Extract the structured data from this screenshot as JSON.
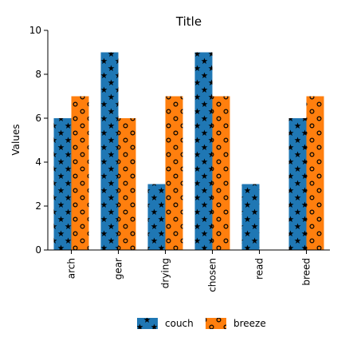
{
  "chart_data": {
    "type": "bar",
    "title": "Title",
    "xlabel": "",
    "ylabel": "Values",
    "ylim": [
      0,
      10
    ],
    "yticks": [
      0,
      2,
      4,
      6,
      8,
      10
    ],
    "grid": false,
    "legend_position": "bottom",
    "categories": [
      "arch",
      "gear",
      "drying",
      "chosen",
      "read",
      "breed"
    ],
    "series": [
      {
        "name": "couch",
        "values": [
          6,
          9,
          3,
          9,
          3,
          6
        ],
        "color": "#1f77b4",
        "pattern": "stars"
      },
      {
        "name": "breeze",
        "values": [
          7,
          6,
          7,
          7,
          0,
          7
        ],
        "color": "#ff7f0e",
        "pattern": "circles"
      }
    ]
  }
}
